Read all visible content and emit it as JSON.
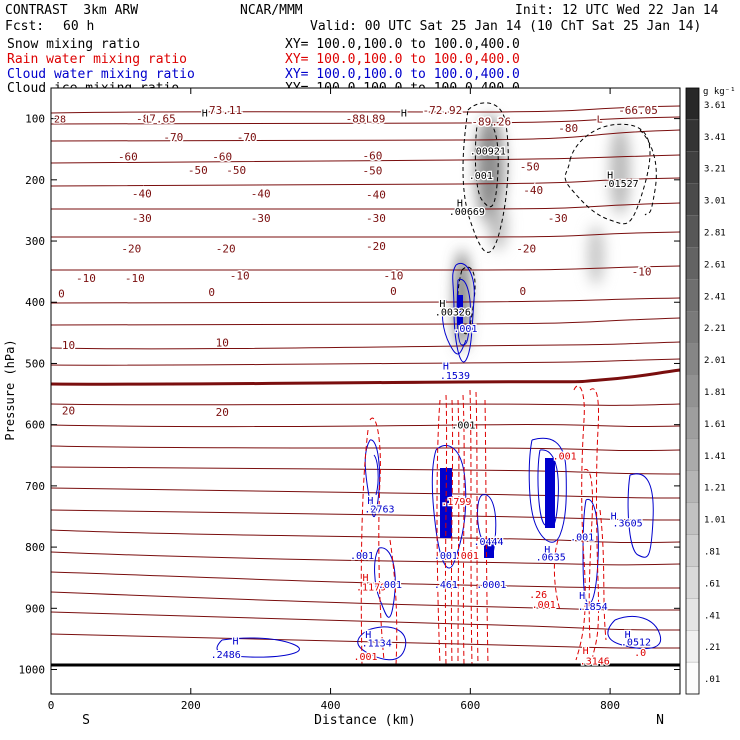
{
  "header": {
    "model": "CONTRAST  3km ARW",
    "org": "NCAR/MMM",
    "init": "Init: 12 UTC Wed 22 Jan 14",
    "fcst_label": "Fcst:",
    "fcst_value": "60 h",
    "valid": "Valid: 00 UTC Sat 25 Jan 14 (10 ChT Sat 25 Jan 14)",
    "fields": [
      {
        "name": "Snow mixing ratio",
        "xy": "XY= 100.0,100.0 to 100.0,400.0",
        "color": "#000000"
      },
      {
        "name": "Rain water mixing ratio",
        "xy": "XY= 100.0,100.0 to 100.0,400.0",
        "color": "#dd0000"
      },
      {
        "name": "Cloud water mixing ratio",
        "xy": "XY= 100.0,100.0 to 100.0,400.0",
        "color": "#0000cc"
      },
      {
        "name": "Cloud ice mixing ratio",
        "xy": "XY= 100.0,100.0 to 100.0,400.0",
        "color": "#000000"
      }
    ]
  },
  "chart_data": {
    "type": "vertical-cross-section",
    "xlabel": "Distance (km)",
    "ylabel": "Pressure (hPa)",
    "xlim": [
      0,
      900
    ],
    "ylim": [
      1040,
      50
    ],
    "x_ticks": [
      0,
      200,
      400,
      600,
      800
    ],
    "y_ticks": [
      100,
      200,
      300,
      400,
      500,
      600,
      700,
      800,
      900,
      1000
    ],
    "x_endpoints": [
      "S",
      "N"
    ],
    "colorbar": {
      "unit": "g kg⁻¹",
      "labels": [
        "3.61",
        "3.41",
        "3.21",
        "3.01",
        "2.81",
        "2.61",
        "2.41",
        "2.21",
        "2.01",
        "1.81",
        "1.61",
        "1.41",
        "1.21",
        "1.01",
        ".81",
        ".61",
        ".41",
        ".21",
        ".01"
      ]
    },
    "temperature_contours": {
      "color": "#7a0e0e",
      "labels": [
        {
          "text": "-73.11",
          "x": 245,
          "p": 86
        },
        {
          "text": "-72.92",
          "x": 560,
          "p": 86
        },
        {
          "text": "-66.05",
          "x": 840,
          "p": 86
        },
        {
          "text": "-87.65",
          "x": 150,
          "p": 100
        },
        {
          "text": "-88.89",
          "x": 450,
          "p": 100
        },
        {
          "text": "-89.26",
          "x": 630,
          "p": 105
        },
        {
          "text": "-80",
          "x": 740,
          "p": 115
        },
        {
          "text": "-70",
          "x": 175,
          "p": 130
        },
        {
          "text": "-70",
          "x": 280,
          "p": 130
        },
        {
          "text": "-60",
          "x": 110,
          "p": 162
        },
        {
          "text": "-60",
          "x": 245,
          "p": 162
        },
        {
          "text": "-60",
          "x": 460,
          "p": 160
        },
        {
          "text": "-50",
          "x": 210,
          "p": 184
        },
        {
          "text": "-50",
          "x": 265,
          "p": 184
        },
        {
          "text": "-50",
          "x": 460,
          "p": 185
        },
        {
          "text": "-50",
          "x": 685,
          "p": 178
        },
        {
          "text": "-40",
          "x": 130,
          "p": 222
        },
        {
          "text": "-40",
          "x": 300,
          "p": 222
        },
        {
          "text": "-40",
          "x": 465,
          "p": 224
        },
        {
          "text": "-40",
          "x": 690,
          "p": 217
        },
        {
          "text": "-30",
          "x": 130,
          "p": 262
        },
        {
          "text": "-30",
          "x": 300,
          "p": 262
        },
        {
          "text": "-30",
          "x": 465,
          "p": 262
        },
        {
          "text": "-30",
          "x": 725,
          "p": 262
        },
        {
          "text": "-20",
          "x": 115,
          "p": 312
        },
        {
          "text": "-20",
          "x": 250,
          "p": 312
        },
        {
          "text": "-20",
          "x": 465,
          "p": 308
        },
        {
          "text": "-20",
          "x": 680,
          "p": 312
        },
        {
          "text": "-10",
          "x": 50,
          "p": 360
        },
        {
          "text": "-10",
          "x": 120,
          "p": 360
        },
        {
          "text": "-10",
          "x": 270,
          "p": 356
        },
        {
          "text": "-10",
          "x": 490,
          "p": 356
        },
        {
          "text": "-10",
          "x": 845,
          "p": 350
        },
        {
          "text": "0",
          "x": 15,
          "p": 386
        },
        {
          "text": "0",
          "x": 230,
          "p": 383
        },
        {
          "text": "0",
          "x": 490,
          "p": 382
        },
        {
          "text": "0",
          "x": 675,
          "p": 382
        },
        {
          "text": "10",
          "x": 25,
          "p": 470
        },
        {
          "text": "10",
          "x": 245,
          "p": 466
        },
        {
          "text": "20",
          "x": 25,
          "p": 577
        },
        {
          "text": "20",
          "x": 245,
          "p": 579
        }
      ]
    },
    "annotations": [
      {
        "text": "L",
        "x": 140,
        "p": 100,
        "color": "#7a0e0e"
      },
      {
        "text": "L",
        "x": 455,
        "p": 100,
        "color": "#7a0e0e"
      },
      {
        "text": "L",
        "x": 785,
        "p": 100,
        "color": "#7a0e0e"
      },
      {
        "text": "H",
        "x": 220,
        "p": 90,
        "color": "#000000"
      },
      {
        "text": "H",
        "x": 505,
        "p": 90,
        "color": "#000000"
      },
      {
        "text": "28",
        "x": -10,
        "p": 100,
        "color": "#7a0e0e"
      },
      {
        "text": ".00921",
        "x": 625,
        "p": 152,
        "color": "#000000"
      },
      {
        "text": ".001",
        "x": 615,
        "p": 192,
        "color": "#000000"
      },
      {
        "text": "H",
        "x": 800,
        "p": 191,
        "color": "#000000"
      },
      {
        "text": ".01527",
        "x": 815,
        "p": 205,
        "color": "#000000"
      },
      {
        "text": "H",
        "x": 585,
        "p": 237,
        "color": "#000000"
      },
      {
        "text": ".00669",
        "x": 595,
        "p": 251,
        "color": "#000000"
      },
      {
        "text": "H",
        "x": 560,
        "p": 401,
        "color": "#000000"
      },
      {
        "text": ".00326",
        "x": 575,
        "p": 415,
        "color": "#000000"
      },
      {
        "text": ".001",
        "x": 593,
        "p": 442,
        "color": "#0000cc"
      },
      {
        "text": "H",
        "x": 565,
        "p": 503,
        "color": "#0000cc"
      },
      {
        "text": ".1539",
        "x": 578,
        "p": 519,
        "color": "#0000cc"
      },
      {
        "text": ".001",
        "x": 590,
        "p": 600,
        "color": "#000000"
      },
      {
        "text": ".001",
        "x": 735,
        "p": 650,
        "color": "#dd0000"
      },
      {
        "text": "H",
        "x": 457,
        "p": 723,
        "color": "#0000cc"
      },
      {
        "text": ".2763",
        "x": 470,
        "p": 737,
        "color": "#0000cc"
      },
      {
        "text": ".1799",
        "x": 580,
        "p": 725,
        "color": "#dd0000"
      },
      {
        "text": "H",
        "x": 805,
        "p": 748,
        "color": "#0000cc"
      },
      {
        "text": ".3605",
        "x": 825,
        "p": 760,
        "color": "#0000cc"
      },
      {
        "text": ".001",
        "x": 760,
        "p": 783,
        "color": "#0000cc"
      },
      {
        "text": ".0444",
        "x": 626,
        "p": 790,
        "color": "#0000cc"
      },
      {
        "text": ".001",
        "x": 445,
        "p": 813,
        "color": "#0000cc"
      },
      {
        "text": ".001",
        "x": 565,
        "p": 813,
        "color": "#0000cc"
      },
      {
        "text": ".001",
        "x": 595,
        "p": 813,
        "color": "#dd0000"
      },
      {
        "text": "H",
        "x": 710,
        "p": 803,
        "color": "#0000cc"
      },
      {
        "text": ".0635",
        "x": 715,
        "p": 815,
        "color": "#0000cc"
      },
      {
        "text": "H",
        "x": 450,
        "p": 849,
        "color": "#dd0000"
      },
      {
        "text": ".1179",
        "x": 458,
        "p": 864,
        "color": "#dd0000"
      },
      {
        "text": ".001",
        "x": 485,
        "p": 860,
        "color": "#0000cc"
      },
      {
        "text": ".461",
        "x": 565,
        "p": 860,
        "color": "#0000cc"
      },
      {
        "text": ".0001",
        "x": 630,
        "p": 860,
        "color": "#0000cc"
      },
      {
        "text": ".26",
        "x": 697,
        "p": 877,
        "color": "#dd0000"
      },
      {
        "text": ".001",
        "x": 705,
        "p": 893,
        "color": "#dd0000"
      },
      {
        "text": "H",
        "x": 760,
        "p": 878,
        "color": "#0000cc"
      },
      {
        "text": ".1854",
        "x": 775,
        "p": 896,
        "color": "#0000cc"
      },
      {
        "text": "H",
        "x": 454,
        "p": 942,
        "color": "#0000cc"
      },
      {
        "text": ".1134",
        "x": 466,
        "p": 956,
        "color": "#0000cc"
      },
      {
        "text": "H",
        "x": 264,
        "p": 953,
        "color": "#0000cc"
      },
      {
        "text": ".2486",
        "x": 250,
        "p": 975,
        "color": "#0000cc"
      },
      {
        "text": "H",
        "x": 825,
        "p": 942,
        "color": "#0000cc"
      },
      {
        "text": ".0512",
        "x": 837,
        "p": 954,
        "color": "#0000cc"
      },
      {
        "text": ".0",
        "x": 843,
        "p": 971,
        "color": "#dd0000"
      },
      {
        "text": ".001",
        "x": 450,
        "p": 978,
        "color": "#dd0000"
      },
      {
        "text": "H",
        "x": 765,
        "p": 968,
        "color": "#dd0000"
      },
      {
        "text": ".3146",
        "x": 778,
        "p": 985,
        "color": "#dd0000"
      }
    ]
  }
}
